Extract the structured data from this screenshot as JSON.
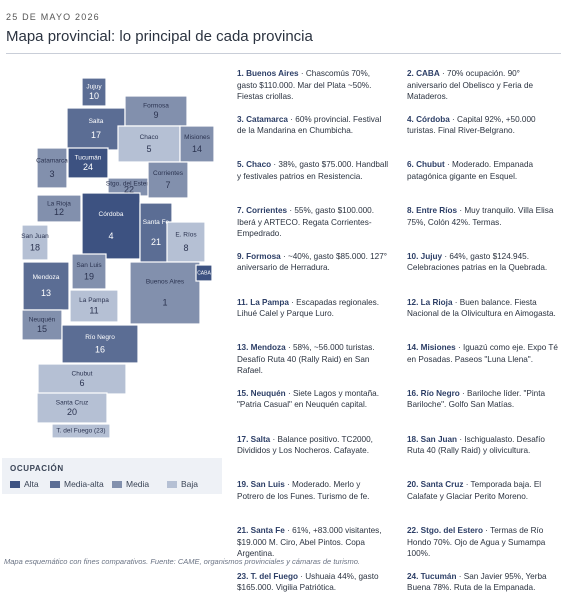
{
  "header": {
    "date": "25 DE MAYO 2026",
    "title": "Mapa provincial: lo principal de cada provincia"
  },
  "map": {
    "provinces": [
      {
        "name": "Jujuy",
        "number": "10",
        "color": "#5b6d94"
      },
      {
        "name": "Salta",
        "number": "17",
        "color": "#5b6d94"
      },
      {
        "name": "Formosa",
        "number": "9",
        "color": "#8290ad"
      },
      {
        "name": "Chaco",
        "number": "5",
        "color": "#b5c0d4"
      },
      {
        "name": "Misiones",
        "number": "14",
        "color": "#8290ad"
      },
      {
        "name": "Catamarca",
        "number": "3",
        "color": "#8290ad"
      },
      {
        "name": "Tucumán",
        "number": "24",
        "color": "#3d5281"
      },
      {
        "name": "Stgo. del Estero",
        "number": "22",
        "color": "#8290ad"
      },
      {
        "name": "Corrientes",
        "number": "7",
        "color": "#8290ad"
      },
      {
        "name": "La Rioja",
        "number": "12",
        "color": "#8290ad"
      },
      {
        "name": "Córdoba",
        "number": "4",
        "color": "#3d5281"
      },
      {
        "name": "Santa Fe",
        "number": "21",
        "color": "#5b6d94"
      },
      {
        "name": "E. Ríos",
        "number": "8",
        "color": "#b5c0d4"
      },
      {
        "name": "San Juan",
        "number": "18",
        "color": "#b5c0d4"
      },
      {
        "name": "San Luis",
        "number": "19",
        "color": "#8290ad"
      },
      {
        "name": "Buenos Aires",
        "number": "1",
        "color": "#8290ad"
      },
      {
        "name": "CABA",
        "color": "#3d5281"
      },
      {
        "name": "Mendoza",
        "number": "13",
        "color": "#5b6d94"
      },
      {
        "name": "La Pampa",
        "number": "11",
        "color": "#b5c0d4"
      },
      {
        "name": "Neuquén",
        "number": "15",
        "color": "#8290ad"
      },
      {
        "name": "Río Negro",
        "number": "16",
        "color": "#5b6d94"
      },
      {
        "name": "Chubut",
        "number": "6",
        "color": "#b5c0d4"
      },
      {
        "name": "Santa Cruz",
        "number": "20",
        "color": "#b5c0d4"
      },
      {
        "name": "T. del Fuego (23)",
        "color": "#b5c0d4"
      }
    ]
  },
  "legend": {
    "title": "OCUPACIÓN",
    "items": [
      {
        "name": "Alta",
        "color": "#3d5281"
      },
      {
        "name": "Media-alta",
        "color": "#5b6d94"
      },
      {
        "name": "Media",
        "color": "#8290ad"
      },
      {
        "name": "Baja",
        "color": "#b5c0d4"
      }
    ]
  },
  "notes": [
    {
      "label": "1. Buenos Aires",
      "text": " · Chascomús 70%, gasto $110.000. Mar del Plata ~50%. Fiestas criollas."
    },
    {
      "label": "2. CABA",
      "text": " · 70% ocupación. 90° aniversario del Obelisco y Feria de Mataderos."
    },
    {
      "label": "3. Catamarca",
      "text": " · 60% provincial. Festival de la Mandarina en Chumbicha."
    },
    {
      "label": "4. Córdoba",
      "text": " · Capital 92%, +50.000 turistas. Final River-Belgrano."
    },
    {
      "label": "5. Chaco",
      "text": " · 38%, gasto $75.000. Handball y festivales patrios en Resistencia."
    },
    {
      "label": "6. Chubut",
      "text": " · Moderado. Empanada patagónica gigante en Esquel."
    },
    {
      "label": "7. Corrientes",
      "text": " · 55%, gasto $100.000. Iberá y ARTECO. Regata Corrientes-Empedrado."
    },
    {
      "label": "8. Entre Ríos",
      "text": " · Muy tranquilo. Villa Elisa 75%, Colón 42%. Termas."
    },
    {
      "label": "9. Formosa",
      "text": " · ~40%, gasto $85.000. 127° aniversario de Herradura."
    },
    {
      "label": "10. Jujuy",
      "text": " · 64%, gasto $124.945. Celebraciones patrias en la Quebrada."
    },
    {
      "label": "11. La Pampa",
      "text": " · Escapadas regionales. Lihué Calel y Parque Luro."
    },
    {
      "label": "12. La Rioja",
      "text": " · Buen balance. Fiesta Nacional de la Olivicultura en Aimogasta."
    },
    {
      "label": "13. Mendoza",
      "text": " · 58%, ~56.000 turistas. Desafío Ruta 40 (Rally Raid) en San Rafael."
    },
    {
      "label": "14. Misiones",
      "text": " · Iguazú como eje. Expo Té en Posadas. Paseos \"Luna Llena\"."
    },
    {
      "label": "15. Neuquén",
      "text": " · Siete Lagos y montaña. \"Patria Casual\" en Neuquén capital."
    },
    {
      "label": "16. Río Negro",
      "text": " · Bariloche líder. \"Pinta Bariloche\". Golfo San Matías."
    },
    {
      "label": "17. Salta",
      "text": " · Balance positivo. TC2000, Divididos y Los Nocheros. Cafayate."
    },
    {
      "label": "18. San Juan",
      "text": " · Ischigualasto. Desafío Ruta 40 (Rally Raid) y olivicultura."
    },
    {
      "label": "19. San Luis",
      "text": " · Moderado. Merlo y Potrero de los Funes. Turismo de fe."
    },
    {
      "label": "20. Santa Cruz",
      "text": " · Temporada baja. El Calafate y Glaciar Perito Moreno."
    },
    {
      "label": "21. Santa Fe",
      "text": " · 61%, +83.000 visitantes, $19.000 M. Ciro, Abel Pintos. Copa Argentina."
    },
    {
      "label": "22. Stgo. del Estero",
      "text": " · Termas de Río Hondo 70%. Ojo de Agua y Sumampa 100%."
    },
    {
      "label": "23. T. del Fuego",
      "text": " · Ushuaia 44%, gasto $165.000. Vigilia Patriótica."
    },
    {
      "label": "24. Tucumán",
      "text": " · San Javier 95%, Yerba Buena 78%. Ruta de la Empanada."
    }
  ],
  "footer": "Mapa esquemático con fines comparativos. Fuente: CAME, organismos provinciales y cámaras de turismo."
}
